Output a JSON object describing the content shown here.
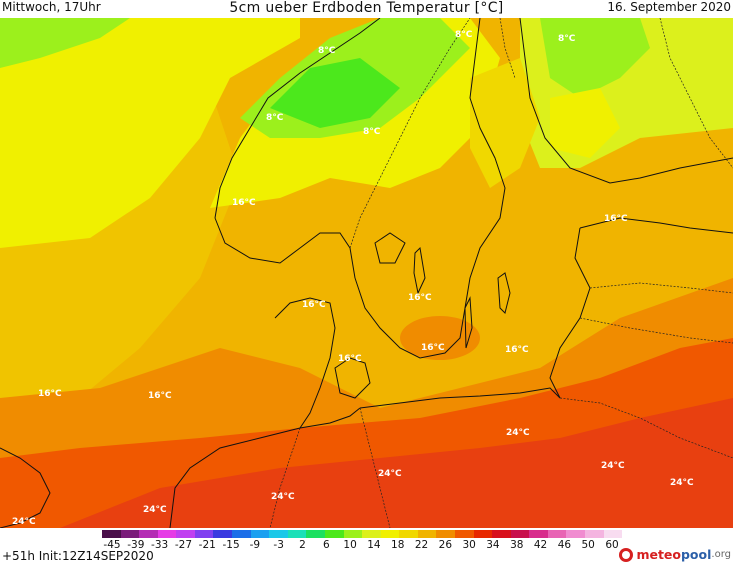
{
  "header": {
    "left": "Mittwoch, 17Uhr",
    "title": "5cm ueber Erdboden Temperatur [°C]",
    "right": "16. September 2020"
  },
  "map": {
    "variable": "5cm ueber Erdboden Temperatur",
    "unit": "°C",
    "region": "Nordsee / Skandinavien / Ostsee",
    "value_labels": [
      {
        "id": "l1",
        "text": "8°C"
      },
      {
        "id": "l2",
        "text": "8°C"
      },
      {
        "id": "l3",
        "text": "8°C"
      },
      {
        "id": "l4",
        "text": "8°C"
      },
      {
        "id": "l5",
        "text": "8°C"
      },
      {
        "id": "l6",
        "text": "16°C"
      },
      {
        "id": "l7",
        "text": "16°C"
      },
      {
        "id": "l8",
        "text": "16°C"
      },
      {
        "id": "l9",
        "text": "16°C"
      },
      {
        "id": "l10",
        "text": "16°C"
      },
      {
        "id": "l11",
        "text": "16°C"
      },
      {
        "id": "l12",
        "text": "16°C"
      },
      {
        "id": "l13",
        "text": "16°C"
      },
      {
        "id": "l14",
        "text": "16°C"
      },
      {
        "id": "l15",
        "text": "24°C"
      },
      {
        "id": "l16",
        "text": "24°C"
      },
      {
        "id": "l17",
        "text": "24°C"
      },
      {
        "id": "l18",
        "text": "24°C"
      },
      {
        "id": "l19",
        "text": "24°C"
      },
      {
        "id": "l20",
        "text": "24°C"
      },
      {
        "id": "l21",
        "text": "24°C"
      }
    ]
  },
  "legend": {
    "ticks": [
      "-45",
      "-39",
      "-33",
      "-27",
      "-21",
      "-15",
      "-9",
      "-3",
      "2",
      "6",
      "10",
      "14",
      "18",
      "22",
      "26",
      "30",
      "34",
      "38",
      "42",
      "46",
      "50",
      "60"
    ],
    "colors": [
      "#4a0f4a",
      "#7a1c7a",
      "#b42cb4",
      "#e63ce6",
      "#c040f0",
      "#8040f0",
      "#3a3ae0",
      "#1c6ee8",
      "#1ca0f0",
      "#1cc8e8",
      "#1ce0b8",
      "#1ce060",
      "#4ce81c",
      "#9cf01c",
      "#dcf01c",
      "#f0f000",
      "#f0d800",
      "#f0b400",
      "#f08c00",
      "#f05800",
      "#e82800",
      "#d8101c",
      "#c8104c",
      "#d82c8c",
      "#e864b4",
      "#f08cd0",
      "#f4b4e0",
      "#f8dcf0"
    ]
  },
  "footer": {
    "run": "+51h Init:12Z14SEP2020",
    "brand_a": "meteo",
    "brand_b": "pool",
    "brand_c": ".org"
  }
}
